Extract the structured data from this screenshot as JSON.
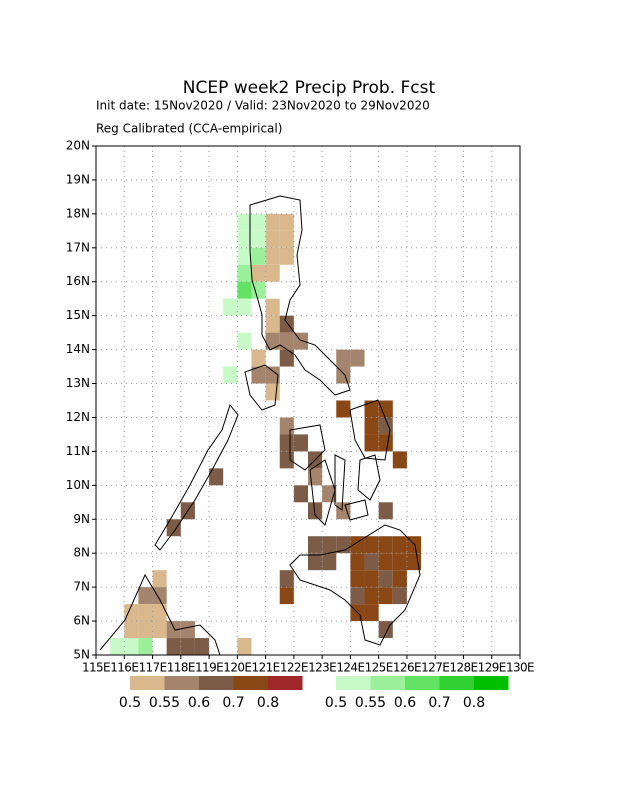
{
  "title": "NCEP week2 Precip Prob. Fcst",
  "subtitle": "Init date: 15Nov2020 / Valid: 23Nov2020 to 29Nov2020",
  "subtitle2": "Reg Calibrated (CCA-empirical)",
  "map": {
    "lonlim": [
      115,
      130
    ],
    "latlim": [
      5,
      20
    ],
    "lon_ticks": [
      {
        "value": 115,
        "label": "115E"
      },
      {
        "value": 116,
        "label": "116E"
      },
      {
        "value": 117,
        "label": "117E"
      },
      {
        "value": 118,
        "label": "118E"
      },
      {
        "value": 119,
        "label": "119E"
      },
      {
        "value": 120,
        "label": "120E"
      },
      {
        "value": 121,
        "label": "121E"
      },
      {
        "value": 122,
        "label": "122E"
      },
      {
        "value": 123,
        "label": "123E"
      },
      {
        "value": 124,
        "label": "124E"
      },
      {
        "value": 125,
        "label": "125E"
      },
      {
        "value": 126,
        "label": "126E"
      },
      {
        "value": 127,
        "label": "127E"
      },
      {
        "value": 128,
        "label": "128E"
      },
      {
        "value": 129,
        "label": "129E"
      },
      {
        "value": 130,
        "label": "130E"
      }
    ],
    "lat_ticks": [
      {
        "value": 5,
        "label": "5N"
      },
      {
        "value": 6,
        "label": "6N"
      },
      {
        "value": 7,
        "label": "7N"
      },
      {
        "value": 8,
        "label": "8N"
      },
      {
        "value": 9,
        "label": "9N"
      },
      {
        "value": 10,
        "label": "10N"
      },
      {
        "value": 11,
        "label": "11N"
      },
      {
        "value": 12,
        "label": "12N"
      },
      {
        "value": 13,
        "label": "13N"
      },
      {
        "value": 14,
        "label": "14N"
      },
      {
        "value": 15,
        "label": "15N"
      },
      {
        "value": 16,
        "label": "16N"
      },
      {
        "value": 17,
        "label": "17N"
      },
      {
        "value": 18,
        "label": "18N"
      },
      {
        "value": 19,
        "label": "19N"
      },
      {
        "value": 20,
        "label": "20N"
      }
    ],
    "grid": true
  },
  "legend_dry": {
    "levels": [
      0.5,
      0.55,
      0.6,
      0.7,
      0.8
    ],
    "colors": [
      "#d8b88c",
      "#a4846c",
      "#7c5c46",
      "#8a4716",
      "#a0282a"
    ]
  },
  "legend_wet": {
    "levels": [
      0.5,
      0.55,
      0.6,
      0.7,
      0.8
    ],
    "colors": [
      "#c8fac8",
      "#9cf09c",
      "#64e264",
      "#30d030",
      "#00be00"
    ]
  },
  "dry_cells": [
    [
      121,
      17.5,
      0.5
    ],
    [
      121.5,
      17.5,
      0.5
    ],
    [
      121,
      17,
      0.5
    ],
    [
      121.5,
      17,
      0.5
    ],
    [
      121,
      16.5,
      0.5
    ],
    [
      121.5,
      16.5,
      0.5
    ],
    [
      120.5,
      16,
      0.5
    ],
    [
      121,
      16,
      0.5
    ],
    [
      121,
      15,
      0.5
    ],
    [
      121,
      14.5,
      0.5
    ],
    [
      121,
      13,
      0.55
    ],
    [
      120.5,
      13,
      0.55
    ],
    [
      121,
      12.5,
      0.5
    ],
    [
      120.5,
      13.5,
      0.5
    ],
    [
      121.5,
      14.5,
      0.6
    ],
    [
      121,
      14,
      0.55
    ],
    [
      121.5,
      14,
      0.55
    ],
    [
      122,
      14,
      0.55
    ],
    [
      121.5,
      13.5,
      0.6
    ],
    [
      123.5,
      13.5,
      0.55
    ],
    [
      124,
      13.5,
      0.55
    ],
    [
      123.5,
      13,
      0.55
    ],
    [
      123.5,
      12,
      0.7
    ],
    [
      124.5,
      12,
      0.7
    ],
    [
      125,
      12,
      0.7
    ],
    [
      124.5,
      11.5,
      0.7
    ],
    [
      125,
      11.5,
      0.6
    ],
    [
      124.5,
      11,
      0.7
    ],
    [
      125,
      11,
      0.7
    ],
    [
      125.5,
      10.5,
      0.7
    ],
    [
      121.5,
      11.5,
      0.55
    ],
    [
      121.5,
      11,
      0.6
    ],
    [
      122,
      11,
      0.6
    ],
    [
      121.5,
      10.5,
      0.6
    ],
    [
      122.5,
      10.5,
      0.6
    ],
    [
      122.5,
      10,
      0.55
    ],
    [
      122,
      9.5,
      0.6
    ],
    [
      123,
      9.5,
      0.55
    ],
    [
      122.5,
      9,
      0.6
    ],
    [
      123.5,
      9,
      0.55
    ],
    [
      125,
      9,
      0.6
    ],
    [
      119,
      10,
      0.6
    ],
    [
      118,
      9,
      0.6
    ],
    [
      117.5,
      8.5,
      0.6
    ],
    [
      122.5,
      8,
      0.6
    ],
    [
      123,
      8,
      0.6
    ],
    [
      123.5,
      8,
      0.6
    ],
    [
      124,
      8,
      0.7
    ],
    [
      124.5,
      8,
      0.7
    ],
    [
      125,
      8,
      0.7
    ],
    [
      125.5,
      8,
      0.7
    ],
    [
      126,
      8,
      0.7
    ],
    [
      122.5,
      7.5,
      0.6
    ],
    [
      123,
      7.5,
      0.6
    ],
    [
      124,
      7.5,
      0.7
    ],
    [
      124.5,
      7.5,
      0.6
    ],
    [
      125,
      7.5,
      0.7
    ],
    [
      125.5,
      7.5,
      0.7
    ],
    [
      126,
      7.5,
      0.7
    ],
    [
      124,
      7,
      0.7
    ],
    [
      124.5,
      7,
      0.7
    ],
    [
      125,
      7,
      0.6
    ],
    [
      125.5,
      7,
      0.7
    ],
    [
      121.5,
      7,
      0.6
    ],
    [
      121.5,
      6.5,
      0.7
    ],
    [
      124,
      6.5,
      0.6
    ],
    [
      124.5,
      6.5,
      0.7
    ],
    [
      125,
      6.5,
      0.7
    ],
    [
      125.5,
      6.5,
      0.6
    ],
    [
      124,
      6,
      0.7
    ],
    [
      124.5,
      6,
      0.7
    ],
    [
      125,
      5.5,
      0.6
    ],
    [
      117,
      7,
      0.5
    ],
    [
      117,
      6.5,
      0.55
    ],
    [
      116.5,
      6.5,
      0.55
    ],
    [
      117,
      6,
      0.5
    ],
    [
      116.5,
      6,
      0.5
    ],
    [
      116,
      6,
      0.5
    ],
    [
      116,
      5.5,
      0.5
    ],
    [
      116.5,
      5.5,
      0.5
    ],
    [
      117,
      5.5,
      0.5
    ],
    [
      117.5,
      5.5,
      0.55
    ],
    [
      118,
      5.5,
      0.55
    ],
    [
      117.5,
      5,
      0.6
    ],
    [
      118,
      5,
      0.6
    ],
    [
      118.5,
      5,
      0.6
    ],
    [
      120,
      5,
      0.5
    ]
  ],
  "wet_cells": [
    [
      120,
      17.5,
      0.5
    ],
    [
      120,
      17,
      0.5
    ],
    [
      120.5,
      17.5,
      0.5
    ],
    [
      120.5,
      17,
      0.5
    ],
    [
      120,
      16.5,
      0.5
    ],
    [
      120,
      16,
      0.55
    ],
    [
      120,
      15.5,
      0.6
    ],
    [
      120,
      15,
      0.5
    ],
    [
      119.5,
      15,
      0.5
    ],
    [
      120.5,
      15.5,
      0.55
    ],
    [
      120.5,
      16.5,
      0.55
    ],
    [
      120,
      14,
      0.5
    ],
    [
      119.5,
      13,
      0.5
    ],
    [
      115.5,
      5,
      0.5
    ],
    [
      116,
      5,
      0.5
    ],
    [
      116.5,
      5,
      0.55
    ]
  ]
}
